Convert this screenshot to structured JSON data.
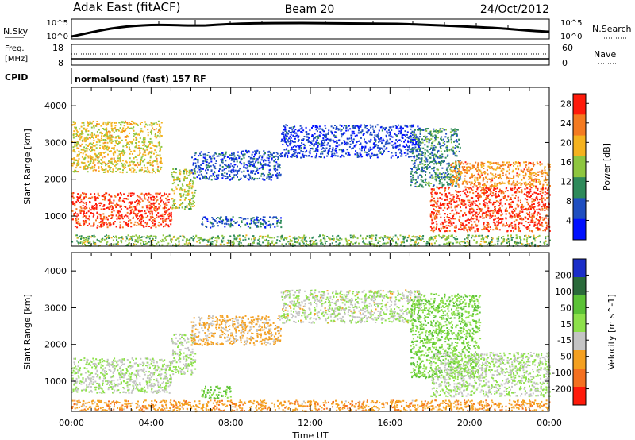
{
  "header": {
    "site": "Adak East (fitACF)",
    "beam": "Beam 20",
    "date": "24/Oct/2012"
  },
  "nsky_panel": {
    "left_label": "N.Sky",
    "right_label": "N.Search",
    "left_ticks": [
      "10^5",
      "10^0"
    ],
    "right_ticks": [
      "10^5",
      "10^0"
    ]
  },
  "freq_panel": {
    "left_label_1": "Freq.",
    "left_label_2": "[MHz]",
    "left_ticks": [
      "18",
      "8"
    ],
    "right_label": "Nave",
    "right_ticks": [
      "60",
      "0"
    ]
  },
  "cpid": {
    "label": "CPID",
    "value": "normalsound (fast) 157 RF"
  },
  "chart_data": [
    {
      "type": "heatmap",
      "panel": "power",
      "xlabel": "Time UT",
      "ylabel": "Slant Range [km]",
      "x_ticks": [
        "00:00",
        "04:00",
        "08:00",
        "12:00",
        "16:00",
        "20:00",
        "00:00"
      ],
      "xlim_hours": [
        0,
        24
      ],
      "y_ticks": [
        1000,
        2000,
        3000,
        4000
      ],
      "ylim": [
        180,
        4500
      ],
      "colorbar": {
        "label": "Power [dB]",
        "ticks": [
          "4",
          "8",
          "12",
          "16",
          "20",
          "24",
          "28"
        ],
        "range": [
          0,
          30
        ],
        "colors": [
          "#0010ff",
          "#1f4ec0",
          "#2e8a5a",
          "#8ec63f",
          "#f4b21e",
          "#f47a20",
          "#ff1a0a"
        ]
      },
      "regions": [
        {
          "t0": 0.0,
          "t1": 5.0,
          "r0": 700,
          "r1": 1650,
          "value": 27
        },
        {
          "t0": 5.0,
          "t1": 6.2,
          "r0": 1200,
          "r1": 2300,
          "value": 16
        },
        {
          "t0": 6.0,
          "t1": 10.5,
          "r0": 2000,
          "r1": 2800,
          "value": 6
        },
        {
          "t0": 6.5,
          "t1": 10.5,
          "r0": 700,
          "r1": 1000,
          "value": 7
        },
        {
          "t0": 10.5,
          "t1": 17.5,
          "r0": 2600,
          "r1": 3500,
          "value": 5
        },
        {
          "t0": 0.0,
          "t1": 4.5,
          "r0": 2200,
          "r1": 3600,
          "value": 18
        },
        {
          "t0": 17.0,
          "t1": 19.5,
          "r0": 1800,
          "r1": 3400,
          "value": 10
        },
        {
          "t0": 18.0,
          "t1": 24.0,
          "r0": 600,
          "r1": 1800,
          "value": 27
        },
        {
          "t0": 19.0,
          "t1": 24.0,
          "r0": 1800,
          "r1": 2500,
          "value": 22
        },
        {
          "t0": 0.0,
          "t1": 24.0,
          "r0": 200,
          "r1": 500,
          "value": 14
        }
      ]
    },
    {
      "type": "heatmap",
      "panel": "velocity",
      "xlabel": "Time UT",
      "ylabel": "Slant Range [km]",
      "x_ticks": [
        "00:00",
        "04:00",
        "08:00",
        "12:00",
        "16:00",
        "20:00",
        "00:00"
      ],
      "xlim_hours": [
        0,
        24
      ],
      "y_ticks": [
        1000,
        2000,
        3000,
        4000
      ],
      "ylim": [
        180,
        4500
      ],
      "colorbar": {
        "label": "Velocity [m s^-1]",
        "ticks": [
          "200",
          "100",
          "50",
          "15",
          "-15",
          "-50",
          "-100",
          "-200"
        ],
        "range": [
          -250,
          250
        ],
        "colors": [
          "#1a2ec8",
          "#2a6a3a",
          "#5bc236",
          "#8de04a",
          "#c4c4c4",
          "#f4a020",
          "#f47020",
          "#ff1a0a"
        ]
      },
      "regions": [
        {
          "t0": 0.0,
          "t1": 5.0,
          "r0": 700,
          "r1": 1650,
          "value": 0
        },
        {
          "t0": 5.0,
          "t1": 6.2,
          "r0": 1200,
          "r1": 2300,
          "value": 0
        },
        {
          "t0": 6.0,
          "t1": 10.5,
          "r0": 2000,
          "r1": 2800,
          "value": -40
        },
        {
          "t0": 6.5,
          "t1": 8.0,
          "r0": 550,
          "r1": 900,
          "value": 45
        },
        {
          "t0": 10.5,
          "t1": 17.5,
          "r0": 2600,
          "r1": 3500,
          "value": -5
        },
        {
          "t0": 17.0,
          "t1": 20.5,
          "r0": 1100,
          "r1": 3400,
          "value": 30
        },
        {
          "t0": 18.0,
          "t1": 24.0,
          "r0": 600,
          "r1": 1800,
          "value": 0
        },
        {
          "t0": 0.0,
          "t1": 24.0,
          "r0": 200,
          "r1": 500,
          "value": -60
        }
      ]
    }
  ]
}
